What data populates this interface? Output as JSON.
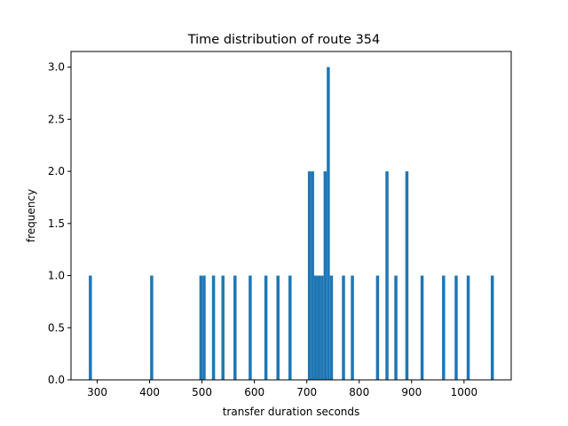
{
  "chart_data": {
    "type": "bar",
    "title": "Time distribution of route 354",
    "xlabel": "transfer duration seconds",
    "ylabel": "frequency",
    "xlim": [
      250,
      1090
    ],
    "ylim": [
      0,
      3.15
    ],
    "bin_width": 5.93,
    "xticks": [
      300,
      400,
      500,
      600,
      700,
      800,
      900,
      1000
    ],
    "yticks": [
      0.0,
      0.5,
      1.0,
      1.5,
      2.0,
      2.5,
      3.0
    ],
    "grid": false,
    "legend": "none",
    "bar_color": "#1f77b4",
    "bins": [
      {
        "x": 284,
        "count": 1
      },
      {
        "x": 401,
        "count": 1
      },
      {
        "x": 495,
        "count": 1
      },
      {
        "x": 501,
        "count": 1
      },
      {
        "x": 519,
        "count": 1
      },
      {
        "x": 537,
        "count": 1
      },
      {
        "x": 560,
        "count": 1
      },
      {
        "x": 589,
        "count": 1
      },
      {
        "x": 619,
        "count": 1
      },
      {
        "x": 642,
        "count": 1
      },
      {
        "x": 665,
        "count": 1
      },
      {
        "x": 702,
        "count": 2
      },
      {
        "x": 708,
        "count": 2
      },
      {
        "x": 714,
        "count": 1
      },
      {
        "x": 720,
        "count": 1
      },
      {
        "x": 726,
        "count": 1
      },
      {
        "x": 732,
        "count": 2
      },
      {
        "x": 738,
        "count": 3
      },
      {
        "x": 744,
        "count": 1
      },
      {
        "x": 767,
        "count": 1
      },
      {
        "x": 784,
        "count": 1
      },
      {
        "x": 832,
        "count": 1
      },
      {
        "x": 850,
        "count": 2
      },
      {
        "x": 867,
        "count": 1
      },
      {
        "x": 888,
        "count": 2
      },
      {
        "x": 917,
        "count": 1
      },
      {
        "x": 958,
        "count": 1
      },
      {
        "x": 982,
        "count": 1
      },
      {
        "x": 1005,
        "count": 1
      },
      {
        "x": 1051,
        "count": 1
      }
    ]
  }
}
